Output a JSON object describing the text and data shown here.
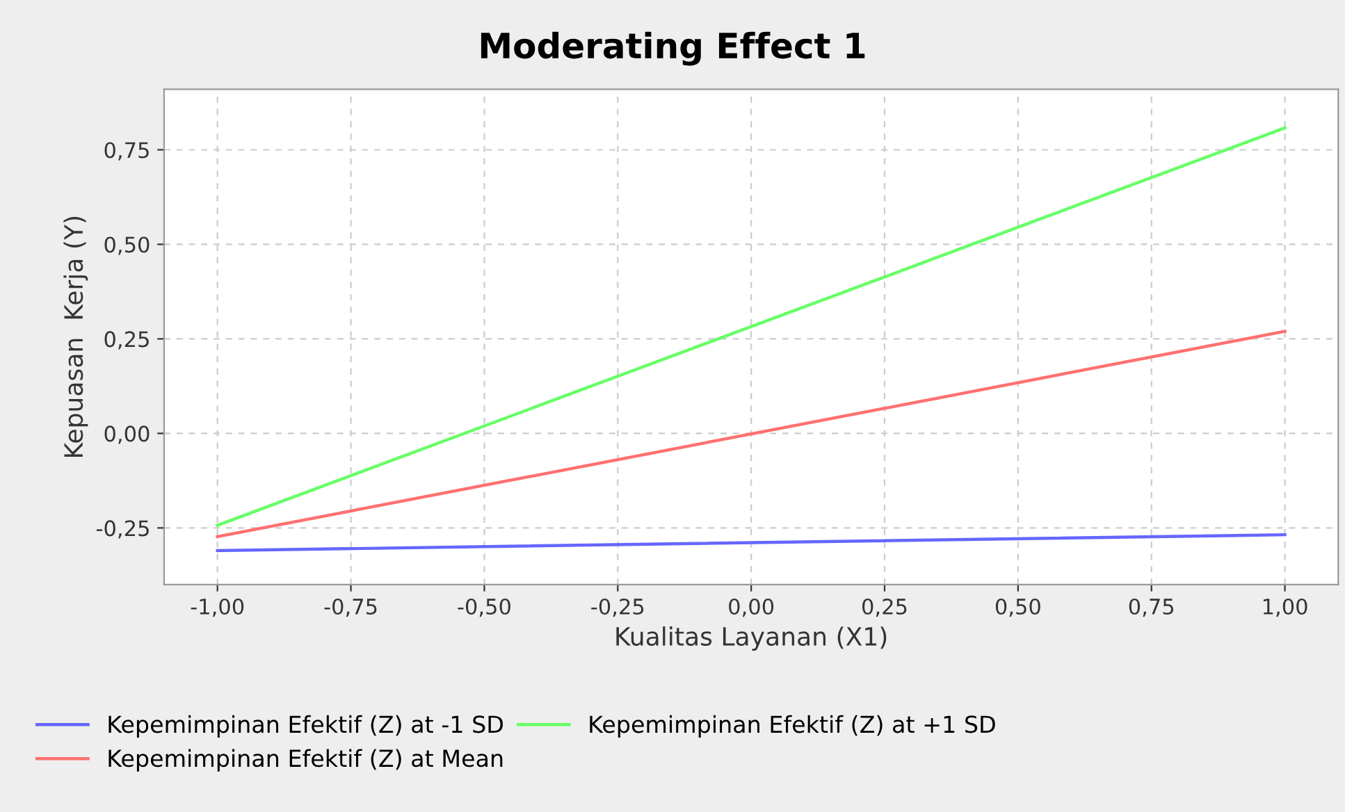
{
  "chart_data": {
    "type": "line",
    "title": "Moderating Effect 1",
    "xlabel": "Kualitas Layanan (X1)",
    "ylabel": "Kepuasan  Kerja (Y)",
    "x": [
      -1,
      1
    ],
    "series": [
      {
        "name": "Kepemimpinan Efektif (Z) at -1 SD",
        "color": "#6666ff",
        "values": [
          -0.31,
          -0.268
        ]
      },
      {
        "name": "Kepemimpinan Efektif (Z) at Mean",
        "color": "#ff7070",
        "values": [
          -0.273,
          0.27
        ]
      },
      {
        "name": "Kepemimpinan Efektif (Z) at +1 SD",
        "color": "#66ff66",
        "values": [
          -0.243,
          0.808
        ]
      }
    ],
    "xlim": [
      -1.1,
      1.1
    ],
    "ylim": [
      -0.4,
      0.91
    ],
    "xticks": [
      {
        "value": -1,
        "label": "-1,00"
      },
      {
        "value": -0.75,
        "label": "-0,75"
      },
      {
        "value": -0.5,
        "label": "-0,50"
      },
      {
        "value": -0.25,
        "label": "-0,25"
      },
      {
        "value": 0,
        "label": "0,00"
      },
      {
        "value": 0.25,
        "label": "0,25"
      },
      {
        "value": 0.5,
        "label": "0,50"
      },
      {
        "value": 0.75,
        "label": "0,75"
      },
      {
        "value": 1,
        "label": "1,00"
      }
    ],
    "yticks": [
      {
        "value": -0.25,
        "label": "-0,25"
      },
      {
        "value": 0,
        "label": "0,00"
      },
      {
        "value": 0.25,
        "label": "0,25"
      },
      {
        "value": 0.5,
        "label": "0,50"
      },
      {
        "value": 0.75,
        "label": "0,75"
      }
    ],
    "grid": true,
    "legend": "bottom",
    "marker": "none",
    "line_style": "solid"
  }
}
